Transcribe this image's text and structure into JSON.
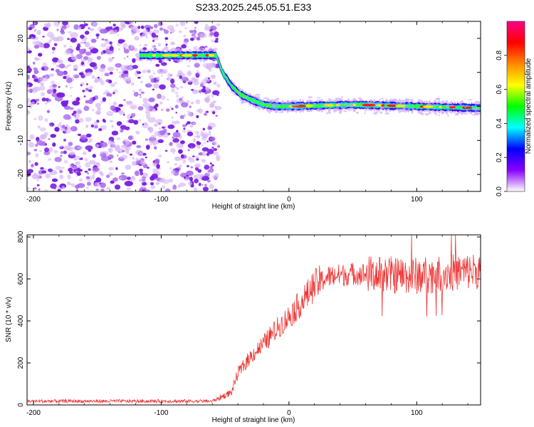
{
  "title": "S233.2025.245.05.51.E33",
  "chart_data": [
    {
      "type": "heatmap",
      "name": "spectrogram",
      "xlabel": "Height of straight line (km)",
      "ylabel": "Frequency (Hz)",
      "xlim": [
        -205,
        150
      ],
      "ylim": [
        -25,
        25
      ],
      "xticks": [
        -200,
        -100,
        0,
        100
      ],
      "yticks": [
        -20,
        -10,
        0,
        10,
        20
      ],
      "noise_region_x": [
        -205,
        -55
      ],
      "tone_track": [
        {
          "x": -117,
          "y": 15
        },
        {
          "x": -57,
          "y": 15
        },
        {
          "x": -52,
          "y": 10
        },
        {
          "x": -45,
          "y": 6
        },
        {
          "x": -38,
          "y": 3.5
        },
        {
          "x": -30,
          "y": 2
        },
        {
          "x": -20,
          "y": 0.5
        },
        {
          "x": -10,
          "y": 0
        },
        {
          "x": 0,
          "y": 0
        },
        {
          "x": 50,
          "y": 0.5
        },
        {
          "x": 100,
          "y": 0
        },
        {
          "x": 150,
          "y": -0.5
        }
      ],
      "colorbar": {
        "label": "Normalized spectral amplitude",
        "range": [
          0.0,
          1.0
        ],
        "ticks": [
          0.0,
          0.2,
          0.4,
          0.6,
          0.8
        ],
        "tick_labels": [
          "0.0",
          "0.2",
          "0.4",
          "0.6",
          "0.8"
        ],
        "colors": [
          "#ffffff",
          "#8800ff",
          "#0000ff",
          "#00ffff",
          "#00ff00",
          "#ffff00",
          "#ff8800",
          "#ff0000",
          "#ff0088"
        ]
      }
    },
    {
      "type": "line",
      "name": "snr",
      "xlabel": "Height of straight line (km)",
      "ylabel": "SNR (10 * v/v)",
      "xlim": [
        -205,
        150
      ],
      "ylim": [
        0,
        810
      ],
      "xticks": [
        -200,
        -100,
        0,
        100
      ],
      "yticks": [
        0,
        200,
        400,
        600,
        800
      ],
      "color": "#ee3333",
      "trend": [
        {
          "x": -205,
          "y": 18
        },
        {
          "x": -60,
          "y": 18
        },
        {
          "x": -45,
          "y": 60
        },
        {
          "x": -40,
          "y": 150
        },
        {
          "x": -30,
          "y": 230
        },
        {
          "x": -20,
          "y": 290
        },
        {
          "x": -10,
          "y": 360
        },
        {
          "x": 0,
          "y": 420
        },
        {
          "x": 10,
          "y": 490
        },
        {
          "x": 20,
          "y": 570
        },
        {
          "x": 30,
          "y": 610
        },
        {
          "x": 50,
          "y": 625
        },
        {
          "x": 100,
          "y": 615
        },
        {
          "x": 150,
          "y": 640
        }
      ],
      "peak": {
        "x": 96,
        "y": 810
      }
    }
  ]
}
